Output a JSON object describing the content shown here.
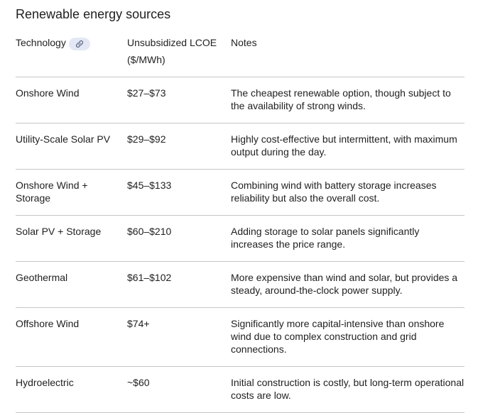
{
  "page": {
    "title": "Renewable energy sources"
  },
  "table": {
    "headers": {
      "technology": "Technology",
      "lcoe": "Unsubsidized LCOE ($/MWh)",
      "notes": "Notes"
    },
    "link_icon": "link-icon",
    "rows": [
      {
        "technology": "Onshore Wind",
        "lcoe": "$27–$73",
        "notes": "The cheapest renewable option, though subject to the availability of strong winds."
      },
      {
        "technology": "Utility-Scale Solar PV",
        "lcoe": "$29–$92",
        "notes": "Highly cost-effective but intermittent, with maximum output during the day."
      },
      {
        "technology": "Onshore Wind + Storage",
        "lcoe": "$45–$133",
        "notes": "Combining wind with battery storage increases reliability but also the overall cost."
      },
      {
        "technology": "Solar PV + Storage",
        "lcoe": "$60–$210",
        "notes": "Adding storage to solar panels significantly increases the price range."
      },
      {
        "technology": "Geothermal",
        "lcoe": "$61–$102",
        "notes": "More expensive than wind and solar, but provides a steady, around-the-clock power supply."
      },
      {
        "technology": "Offshore Wind",
        "lcoe": "$74+",
        "notes": "Significantly more capital-intensive than onshore wind due to complex construction and grid connections."
      },
      {
        "technology": "Hydroelectric",
        "lcoe": "~$60",
        "notes": "Initial construction is costly, but long-term operational costs are low."
      }
    ]
  }
}
